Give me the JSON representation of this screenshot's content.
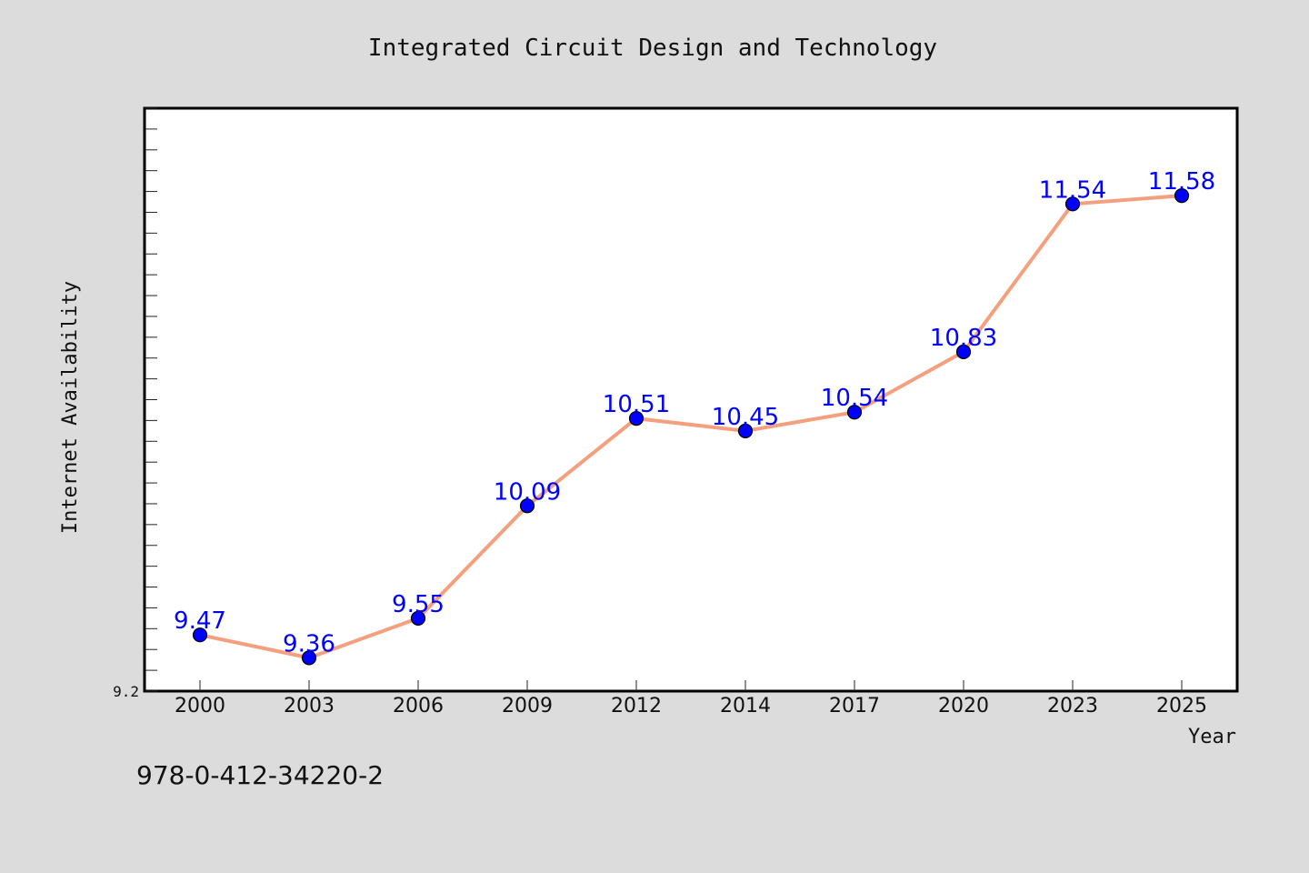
{
  "chart_data": {
    "type": "line",
    "title": "Integrated Circuit Design and Technology",
    "xlabel": "Year",
    "ylabel": "Internet Availability",
    "categories": [
      "2000",
      "2003",
      "2006",
      "2009",
      "2012",
      "2014",
      "2017",
      "2020",
      "2023",
      "2025"
    ],
    "series": [
      {
        "values": [
          9.47,
          9.36,
          9.55,
          10.09,
          10.51,
          10.45,
          10.54,
          10.83,
          11.54,
          11.58
        ]
      }
    ],
    "y_tick_labels": [
      "9.2"
    ],
    "ylim": [
      9.2,
      12.0
    ],
    "grid": false,
    "legend": "none",
    "line_color": "#f4a07e",
    "marker_color": "#0000ff",
    "label_color": "#0000ff",
    "background_color": "#dcdcdc",
    "plot_background_color": "#ffffff"
  },
  "footer": {
    "isbn": "978-0-412-34220-2"
  }
}
